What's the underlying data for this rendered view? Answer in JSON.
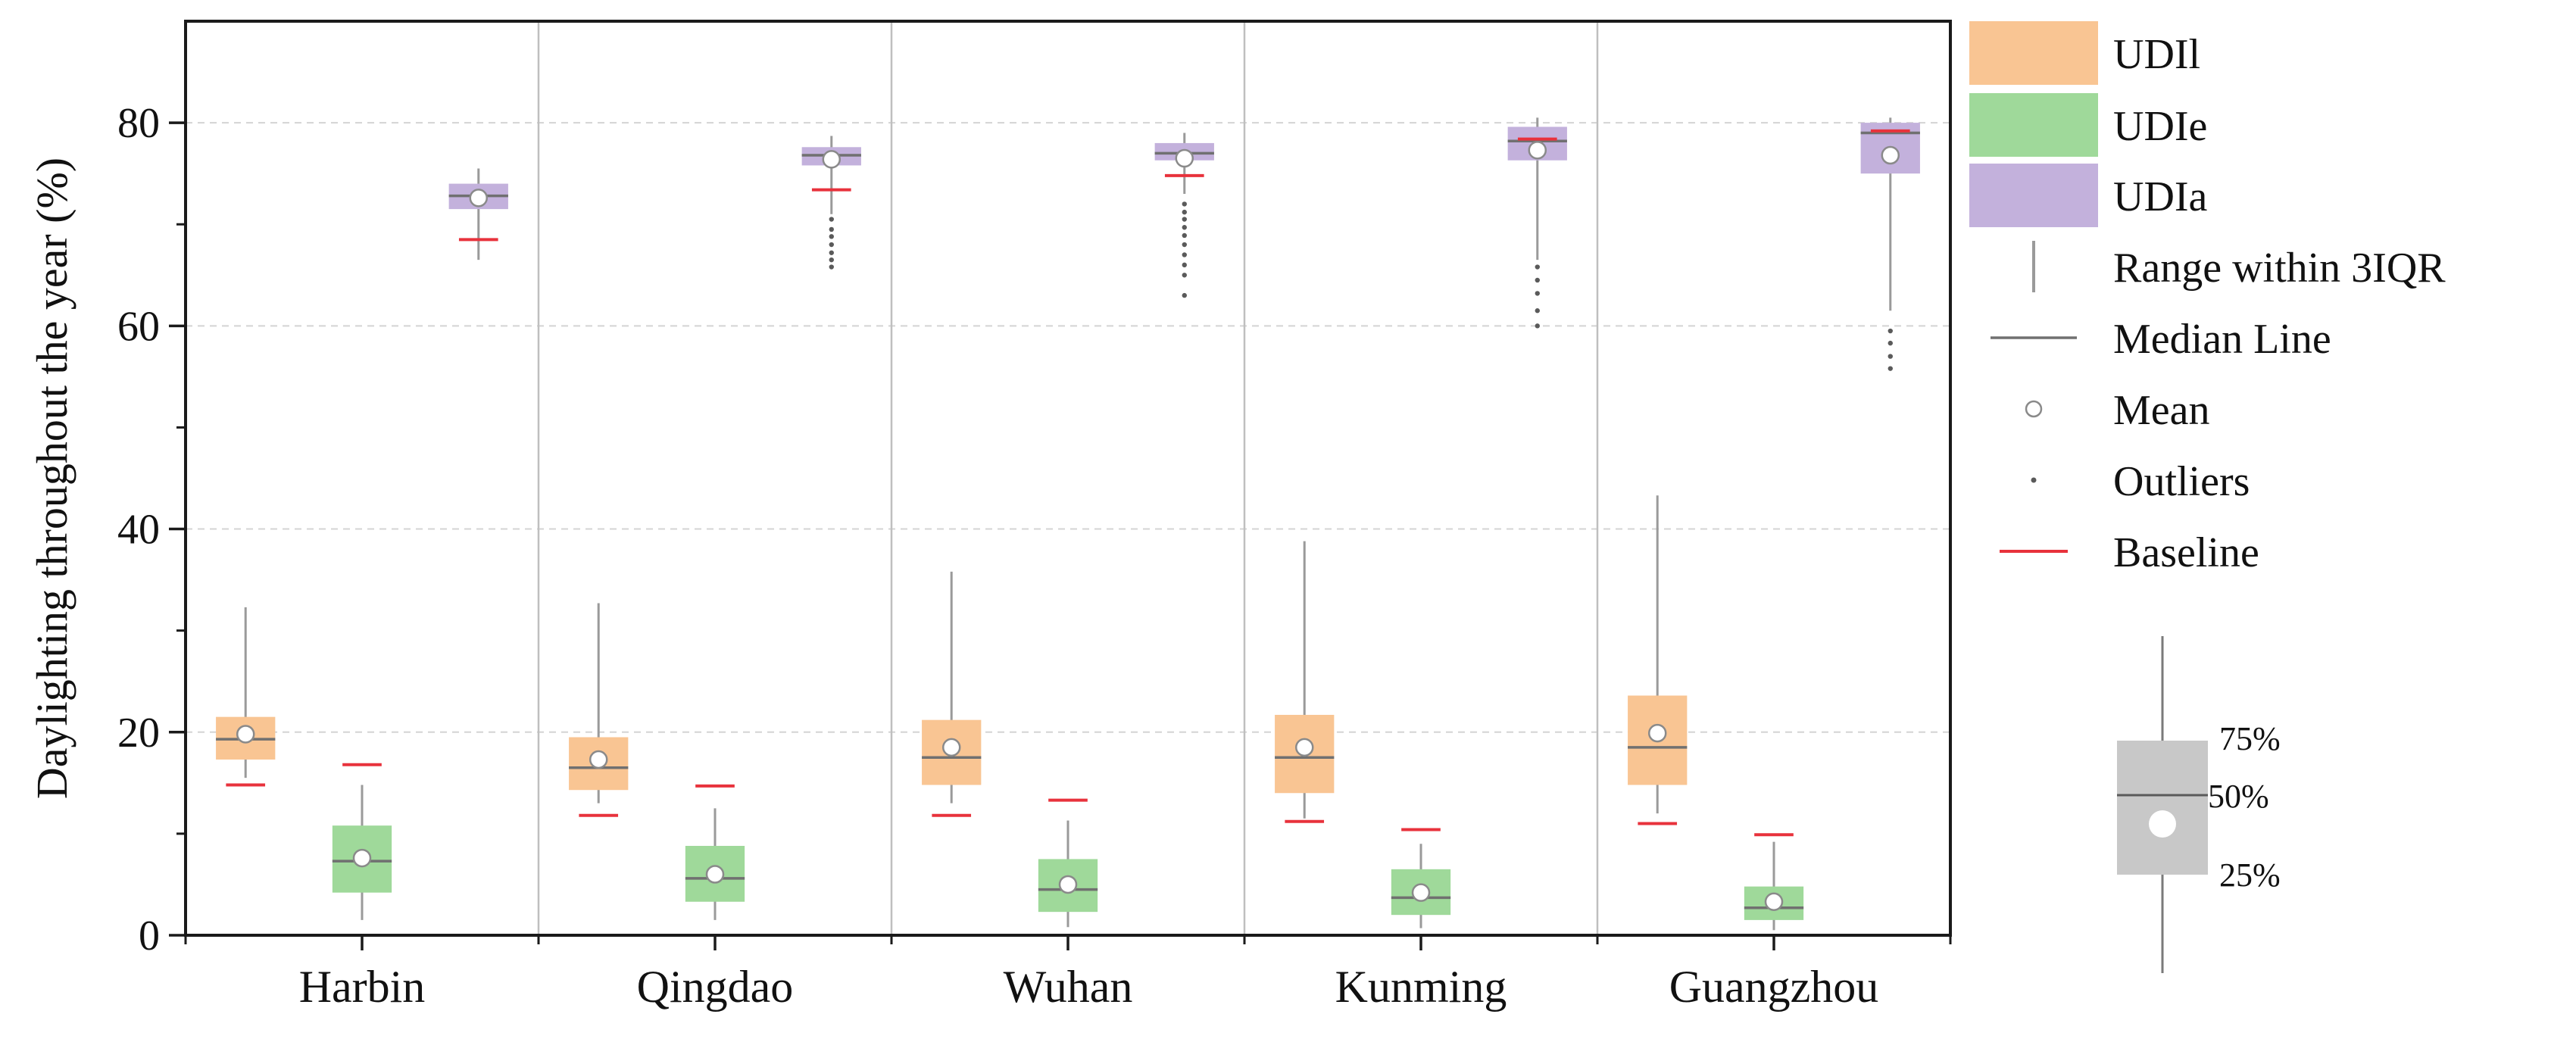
{
  "chart_data": {
    "type": "boxplot",
    "title": "",
    "xlabel": "",
    "ylabel": "Daylighting throughout the year (%)",
    "ylim": [
      0,
      90
    ],
    "yticks": [
      0,
      20,
      40,
      60,
      80
    ],
    "grid": "horizontal dashed at major ticks",
    "categories": [
      "Harbin",
      "Qingdao",
      "Wuhan",
      "Kunming",
      "Guangzhou"
    ],
    "series": [
      {
        "name": "UDIl",
        "color": "#f9c593",
        "boxes": [
          {
            "category": "Harbin",
            "whisker_low": 15.5,
            "q1": 17.3,
            "median": 19.3,
            "q3": 21.5,
            "whisker_high": 32.3,
            "mean": 19.8,
            "baseline": 14.8,
            "outliers": []
          },
          {
            "category": "Qingdao",
            "whisker_low": 13.0,
            "q1": 14.3,
            "median": 16.5,
            "q3": 19.5,
            "whisker_high": 32.7,
            "mean": 17.3,
            "baseline": 11.8,
            "outliers": []
          },
          {
            "category": "Wuhan",
            "whisker_low": 13.0,
            "q1": 14.8,
            "median": 17.5,
            "q3": 21.2,
            "whisker_high": 35.8,
            "mean": 18.5,
            "baseline": 11.8,
            "outliers": []
          },
          {
            "category": "Kunming",
            "whisker_low": 11.5,
            "q1": 14.0,
            "median": 17.5,
            "q3": 21.7,
            "whisker_high": 38.8,
            "mean": 18.5,
            "baseline": 11.2,
            "outliers": []
          },
          {
            "category": "Guangzhou",
            "whisker_low": 12.0,
            "q1": 14.8,
            "median": 18.5,
            "q3": 23.6,
            "whisker_high": 43.3,
            "mean": 19.9,
            "baseline": 11.0,
            "outliers": []
          }
        ]
      },
      {
        "name": "UDIe",
        "color": "#9fd99a",
        "boxes": [
          {
            "category": "Harbin",
            "whisker_low": 1.5,
            "q1": 4.2,
            "median": 7.3,
            "q3": 10.8,
            "whisker_high": 14.8,
            "mean": 7.6,
            "baseline": 16.8,
            "outliers": []
          },
          {
            "category": "Qingdao",
            "whisker_low": 1.5,
            "q1": 3.3,
            "median": 5.6,
            "q3": 8.8,
            "whisker_high": 12.5,
            "mean": 6.0,
            "baseline": 14.7,
            "outliers": []
          },
          {
            "category": "Wuhan",
            "whisker_low": 0.8,
            "q1": 2.3,
            "median": 4.5,
            "q3": 7.5,
            "whisker_high": 11.3,
            "mean": 5.0,
            "baseline": 13.3,
            "outliers": []
          },
          {
            "category": "Kunming",
            "whisker_low": 0.7,
            "q1": 2.0,
            "median": 3.7,
            "q3": 6.5,
            "whisker_high": 9.0,
            "mean": 4.2,
            "baseline": 10.4,
            "outliers": []
          },
          {
            "category": "Guangzhou",
            "whisker_low": 0.5,
            "q1": 1.5,
            "median": 2.7,
            "q3": 4.8,
            "whisker_high": 9.2,
            "mean": 3.3,
            "baseline": 9.9,
            "outliers": []
          }
        ]
      },
      {
        "name": "UDIa",
        "color": "#c3b1dc",
        "boxes": [
          {
            "category": "Harbin",
            "whisker_low": 66.5,
            "q1": 71.5,
            "median": 72.8,
            "q3": 74.0,
            "whisker_high": 75.5,
            "mean": 72.6,
            "baseline": 68.5,
            "outliers": []
          },
          {
            "category": "Qingdao",
            "whisker_low": 71.0,
            "q1": 75.8,
            "median": 76.8,
            "q3": 77.6,
            "whisker_high": 78.7,
            "mean": 76.4,
            "baseline": 73.4,
            "outliers": [
              70.5,
              69.5,
              68.8,
              68.0,
              67.2,
              66.5,
              65.8
            ]
          },
          {
            "category": "Wuhan",
            "whisker_low": 73.0,
            "q1": 76.3,
            "median": 77.0,
            "q3": 78.0,
            "whisker_high": 79.0,
            "mean": 76.5,
            "baseline": 74.8,
            "outliers": [
              72.0,
              71.2,
              70.5,
              69.7,
              68.9,
              68.0,
              67.0,
              66.0,
              65.0,
              63.0
            ]
          },
          {
            "category": "Kunming",
            "whisker_low": 66.5,
            "q1": 76.3,
            "median": 78.2,
            "q3": 79.6,
            "whisker_high": 80.5,
            "mean": 77.3,
            "baseline": 78.4,
            "outliers": [
              65.8,
              64.5,
              63.2,
              61.5,
              60.0
            ]
          },
          {
            "category": "Guangzhou",
            "whisker_low": 61.5,
            "q1": 75.0,
            "median": 79.0,
            "q3": 80.0,
            "whisker_high": 80.5,
            "mean": 76.8,
            "baseline": 79.2,
            "outliers": [
              59.5,
              58.3,
              57.0,
              55.8
            ]
          }
        ]
      }
    ],
    "legend": {
      "position": "right",
      "entries": [
        {
          "label": "UDIl",
          "kind": "patch",
          "color": "#f9c593"
        },
        {
          "label": "UDIe",
          "kind": "patch",
          "color": "#9fd99a"
        },
        {
          "label": "UDIa",
          "kind": "patch",
          "color": "#c3b1dc"
        },
        {
          "label": "Range within 3IQR",
          "kind": "whisker"
        },
        {
          "label": "Median Line",
          "kind": "median"
        },
        {
          "label": "Mean",
          "kind": "mean"
        },
        {
          "label": "Outliers",
          "kind": "outlier"
        },
        {
          "label": "Baseline",
          "kind": "baseline",
          "color": "#e8323c"
        }
      ],
      "box_key": {
        "upper": "75%",
        "middle": "50%",
        "lower": "25%"
      }
    },
    "colors": {
      "baseline": "#e8323c",
      "median": "#707070",
      "whisker": "#9a9a9a",
      "outlier": "#5a5a5a",
      "mean_fill": "#ffffff",
      "key_box": "#c8c8c8"
    }
  }
}
